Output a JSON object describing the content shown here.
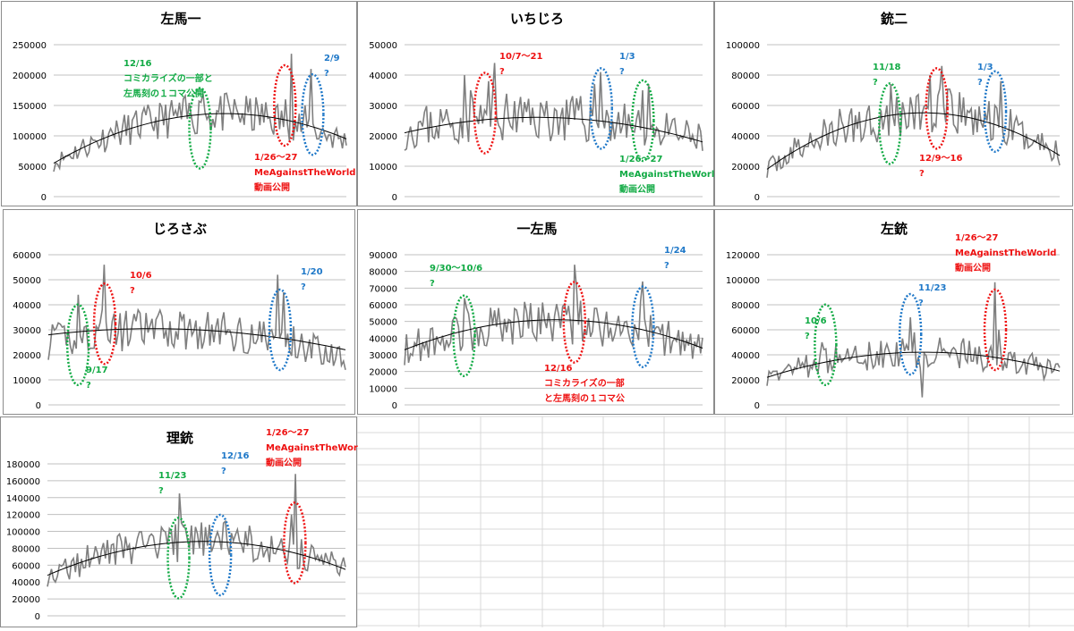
{
  "colors": {
    "line": "#7f7f7f",
    "trend": "#000000",
    "grid": "#c0c0c0",
    "red": "#ee1111",
    "blue": "#1f78c8",
    "green": "#11aa44",
    "sheet_grid": "#d9d9d9"
  },
  "chart_data": [
    {
      "id": "c1",
      "type": "line",
      "title": "左馬一",
      "ylim": [
        0,
        250000
      ],
      "yticks": [
        "0",
        "50000",
        "100000",
        "150000",
        "200000",
        "250000"
      ],
      "series_seed": 11,
      "base": [
        55000,
        135000,
        90000
      ],
      "noise": 0.18,
      "spikes": [
        [
          0.51,
          170000
        ],
        [
          0.5,
          155000
        ],
        [
          0.81,
          235000
        ],
        [
          0.79,
          160000
        ],
        [
          0.88,
          210000
        ],
        [
          0.86,
          150000
        ],
        [
          0.2,
          105000
        ]
      ],
      "trend": [
        55000,
        135000,
        95000
      ],
      "ellipses": [
        {
          "color": "green",
          "cx": 0.5,
          "cy": 0.55
        },
        {
          "color": "red",
          "cx": 0.79,
          "cy": 0.4
        },
        {
          "color": "blue",
          "cx": 0.885,
          "cy": 0.46
        }
      ],
      "annotations": [
        {
          "color": "green",
          "lines": [
            "12/16",
            "コミカライズの一部と",
            "左馬刻の１コマ公開"
          ]
        },
        {
          "color": "red",
          "lines": [
            "1/26〜27",
            "MeAgainstTheWorld",
            "動画公開"
          ]
        },
        {
          "color": "blue",
          "lines": [
            "2/9",
            "?"
          ]
        }
      ]
    },
    {
      "id": "c2",
      "type": "line",
      "title": "いちじろ",
      "ylim": [
        0,
        50000
      ],
      "yticks": [
        "0",
        "10000",
        "20000",
        "30000",
        "40000",
        "50000"
      ],
      "series_seed": 23,
      "base": [
        22000,
        26000,
        18000
      ],
      "noise": 0.22,
      "spikes": [
        [
          0.2,
          40000
        ],
        [
          0.22,
          35000
        ],
        [
          0.28,
          38000
        ],
        [
          0.3,
          44000
        ],
        [
          0.66,
          41000
        ],
        [
          0.64,
          37000
        ],
        [
          0.8,
          35000
        ],
        [
          0.82,
          37000
        ]
      ],
      "trend": [
        21000,
        26000,
        18000
      ],
      "ellipses": [
        {
          "color": "red",
          "cx": 0.27,
          "cy": 0.45
        },
        {
          "color": "blue",
          "cx": 0.66,
          "cy": 0.42
        },
        {
          "color": "green",
          "cx": 0.8,
          "cy": 0.5
        }
      ],
      "annotations": [
        {
          "color": "red",
          "lines": [
            "10/7〜21",
            "?"
          ]
        },
        {
          "color": "blue",
          "lines": [
            "1/3",
            "?"
          ]
        },
        {
          "color": "green",
          "lines": [
            "1/26〜27",
            "MeAgainstTheWorld",
            "動画公開"
          ]
        }
      ]
    },
    {
      "id": "c3",
      "type": "line",
      "title": "銃二",
      "ylim": [
        0,
        100000
      ],
      "yticks": [
        "0",
        "20000",
        "40000",
        "60000",
        "80000",
        "100000"
      ],
      "series_seed": 37,
      "base": [
        18000,
        55000,
        28000
      ],
      "noise": 0.22,
      "spikes": [
        [
          0.42,
          74000
        ],
        [
          0.56,
          80000
        ],
        [
          0.6,
          86000
        ],
        [
          0.8,
          76000
        ],
        [
          0.41,
          60000
        ]
      ],
      "trend": [
        18000,
        55000,
        27000
      ],
      "ellipses": [
        {
          "color": "green",
          "cx": 0.42,
          "cy": 0.52
        },
        {
          "color": "red",
          "cx": 0.58,
          "cy": 0.42
        },
        {
          "color": "blue",
          "cx": 0.78,
          "cy": 0.44
        }
      ],
      "annotations": [
        {
          "color": "green",
          "lines": [
            "11/18",
            "?"
          ]
        },
        {
          "color": "red",
          "lines": [
            "12/9〜16",
            "?"
          ]
        },
        {
          "color": "blue",
          "lines": [
            "1/3",
            "?"
          ]
        }
      ]
    },
    {
      "id": "c4",
      "type": "line",
      "title": "じろさぶ",
      "ylim": [
        0,
        60000
      ],
      "yticks": [
        "0",
        "10000",
        "20000",
        "30000",
        "40000",
        "50000",
        "60000"
      ],
      "series_seed": 41,
      "base": [
        25000,
        30000,
        19000
      ],
      "noise": 0.2,
      "spikes": [
        [
          0.1,
          44000
        ],
        [
          0.19,
          56000
        ],
        [
          0.18,
          38000
        ],
        [
          0.77,
          52000
        ],
        [
          0.79,
          45000
        ]
      ],
      "trend": [
        28000,
        30000,
        22000
      ],
      "ellipses": [
        {
          "color": "green",
          "cx": 0.1,
          "cy": 0.6
        },
        {
          "color": "red",
          "cx": 0.19,
          "cy": 0.46
        },
        {
          "color": "blue",
          "cx": 0.78,
          "cy": 0.5
        }
      ],
      "annotations": [
        {
          "color": "red",
          "lines": [
            "10/6",
            "?"
          ]
        },
        {
          "color": "green",
          "lines": [
            "9/17",
            "?"
          ]
        },
        {
          "color": "blue",
          "lines": [
            "1/20",
            "?"
          ]
        }
      ]
    },
    {
      "id": "c5",
      "type": "line",
      "title": "一左馬",
      "ylim": [
        0,
        90000
      ],
      "yticks": [
        "0",
        "10000",
        "20000",
        "30000",
        "40000",
        "50000",
        "60000",
        "70000",
        "80000",
        "90000"
      ],
      "series_seed": 53,
      "base": [
        33000,
        50000,
        33000
      ],
      "noise": 0.2,
      "spikes": [
        [
          0.2,
          64000
        ],
        [
          0.21,
          58000
        ],
        [
          0.57,
          84000
        ],
        [
          0.58,
          70000
        ],
        [
          0.8,
          74000
        ],
        [
          0.79,
          62000
        ]
      ],
      "trend": [
        33000,
        51000,
        34000
      ],
      "ellipses": [
        {
          "color": "green",
          "cx": 0.2,
          "cy": 0.54
        },
        {
          "color": "red",
          "cx": 0.57,
          "cy": 0.45
        },
        {
          "color": "blue",
          "cx": 0.8,
          "cy": 0.48
        }
      ],
      "annotations": [
        {
          "color": "green",
          "lines": [
            "9/30〜10/6",
            "?"
          ]
        },
        {
          "color": "red",
          "lines": [
            "12/16",
            "コミカライズの一部",
            "と左馬刻の１コマ公"
          ]
        },
        {
          "color": "blue",
          "lines": [
            "1/24",
            "?"
          ]
        }
      ]
    },
    {
      "id": "c6",
      "type": "line",
      "title": "左銃",
      "ylim": [
        0,
        120000
      ],
      "yticks": [
        "0",
        "20000",
        "40000",
        "60000",
        "80000",
        "100000",
        "120000"
      ],
      "series_seed": 67,
      "base": [
        22000,
        42000,
        26000
      ],
      "noise": 0.22,
      "spikes": [
        [
          0.19,
          50000
        ],
        [
          0.49,
          70000
        ],
        [
          0.5,
          58000
        ],
        [
          0.53,
          6000
        ],
        [
          0.78,
          98000
        ],
        [
          0.79,
          60000
        ]
      ],
      "trend": [
        22000,
        42000,
        27000
      ],
      "ellipses": [
        {
          "color": "green",
          "cx": 0.2,
          "cy": 0.6
        },
        {
          "color": "blue",
          "cx": 0.49,
          "cy": 0.53
        },
        {
          "color": "red",
          "cx": 0.78,
          "cy": 0.5
        }
      ],
      "annotations": [
        {
          "color": "green",
          "lines": [
            "10/6",
            "?"
          ]
        },
        {
          "color": "blue",
          "lines": [
            "11/23",
            "?"
          ]
        },
        {
          "color": "red",
          "lines": [
            "1/26〜27",
            "MeAgainstTheWorld",
            "動画公開"
          ]
        }
      ]
    },
    {
      "id": "c7",
      "type": "line",
      "title": "理銃",
      "ylim": [
        0,
        180000
      ],
      "yticks": [
        "0",
        "20000",
        "40000",
        "60000",
        "80000",
        "100000",
        "120000",
        "140000",
        "160000",
        "180000"
      ],
      "series_seed": 79,
      "base": [
        48000,
        88000,
        55000
      ],
      "noise": 0.2,
      "spikes": [
        [
          0.44,
          145000
        ],
        [
          0.45,
          110000
        ],
        [
          0.58,
          92000
        ],
        [
          0.6,
          112000
        ],
        [
          0.83,
          168000
        ],
        [
          0.82,
          120000
        ]
      ],
      "trend": [
        48000,
        88000,
        55000
      ],
      "ellipses": [
        {
          "color": "green",
          "cx": 0.44,
          "cy": 0.62
        },
        {
          "color": "blue",
          "cx": 0.58,
          "cy": 0.6
        },
        {
          "color": "red",
          "cx": 0.83,
          "cy": 0.52
        }
      ],
      "annotations": [
        {
          "color": "green",
          "lines": [
            "11/23",
            "?"
          ]
        },
        {
          "color": "blue",
          "lines": [
            "12/16",
            "?"
          ]
        },
        {
          "color": "red",
          "lines": [
            "1/26〜27",
            "MeAgainstTheWorld",
            "動画公開"
          ]
        }
      ]
    }
  ]
}
